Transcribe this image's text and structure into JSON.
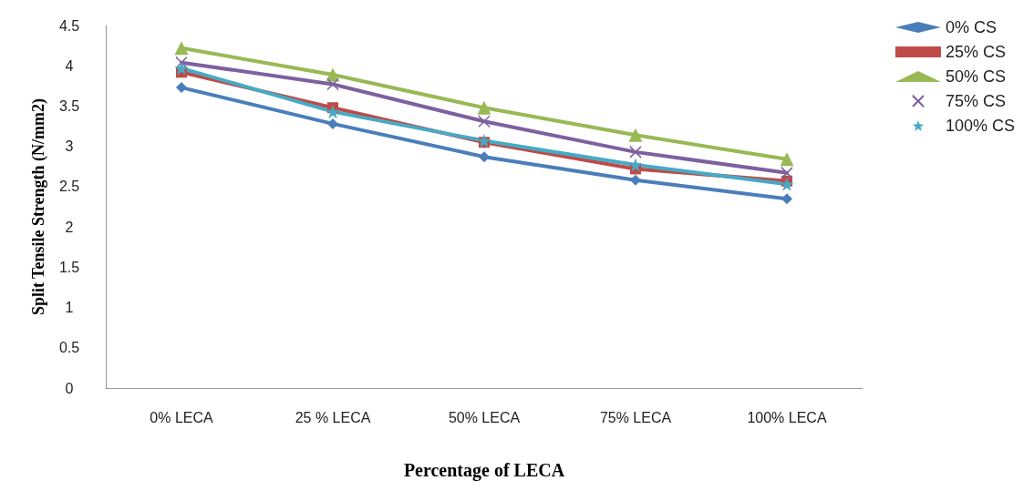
{
  "chart_data": {
    "type": "line",
    "xlabel": "Percentage of LECA",
    "ylabel": "Split Tensile Strength (N/mm2)",
    "categories": [
      "0% LECA",
      "25 % LECA",
      "50% LECA",
      "75% LECA",
      "100% LECA"
    ],
    "ylim": [
      0,
      4.5
    ],
    "yticks": [
      0,
      0.5,
      1,
      1.5,
      2,
      2.5,
      3,
      3.5,
      4,
      4.5
    ],
    "grid": false,
    "legend": "top right",
    "series": [
      {
        "name": "0% CS",
        "color": "#4a7ebb",
        "marker": "diamond",
        "values": [
          3.73,
          3.28,
          2.87,
          2.58,
          2.35
        ]
      },
      {
        "name": "25% CS",
        "color": "#be4b48",
        "marker": "square",
        "values": [
          3.92,
          3.48,
          3.05,
          2.72,
          2.57
        ]
      },
      {
        "name": "50% CS",
        "color": "#98b954",
        "marker": "triangle",
        "values": [
          4.22,
          3.89,
          3.48,
          3.14,
          2.84
        ]
      },
      {
        "name": "75% CS",
        "color": "#7d60a0",
        "marker": "cross",
        "values": [
          4.04,
          3.77,
          3.31,
          2.93,
          2.67
        ]
      },
      {
        "name": "100% CS",
        "color": "#46aac5",
        "marker": "star",
        "values": [
          3.97,
          3.43,
          3.07,
          2.77,
          2.53
        ]
      }
    ]
  }
}
